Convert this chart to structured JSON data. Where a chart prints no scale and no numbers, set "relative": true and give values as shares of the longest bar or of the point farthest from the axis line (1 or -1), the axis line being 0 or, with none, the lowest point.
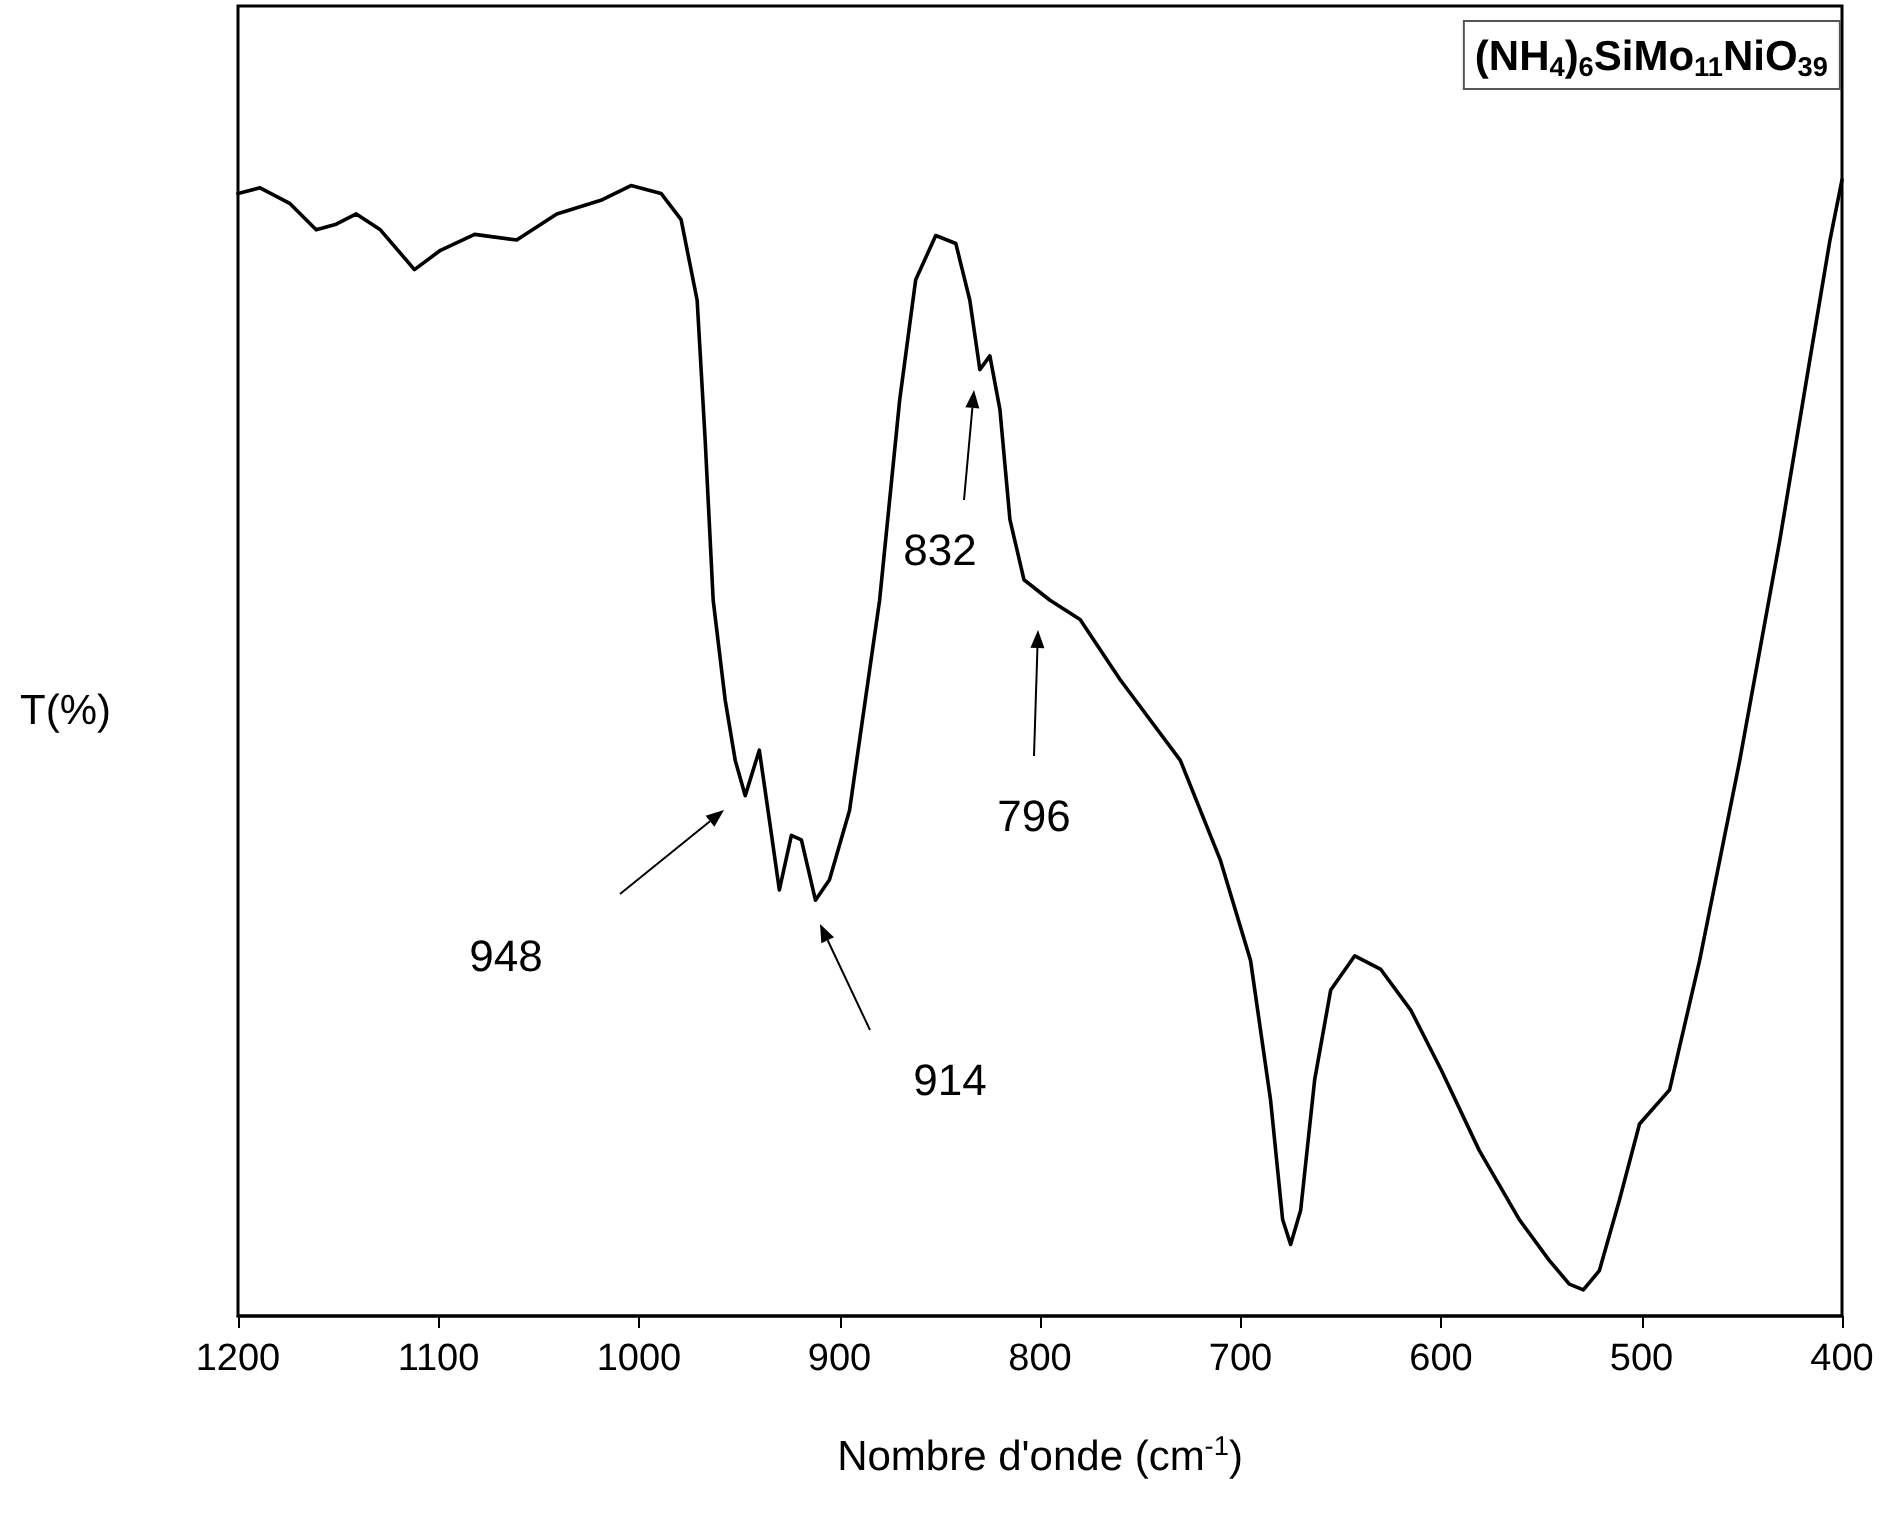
{
  "chart_data": {
    "type": "line",
    "relative": true,
    "title": "(NH$_{4}$)$_{6}$SiMo$_{11}$NiO$_{39}$",
    "xlabel": "Nombre d'onde (cm$^{-1}$)",
    "ylabel": "T(%)",
    "xlim": [
      1200,
      400
    ],
    "xticks": [
      1200,
      1100,
      1000,
      900,
      800,
      700,
      600,
      500,
      400
    ],
    "marker": "none",
    "line_style": "solid",
    "series": [
      {
        "color": "#000000",
        "x": [
          1200,
          1189,
          1174,
          1161,
          1151,
          1141,
          1129,
          1112,
          1099,
          1082,
          1061,
          1041,
          1019,
          1004,
          989,
          979,
          971,
          967,
          963,
          957,
          952,
          947,
          940,
          935,
          930,
          924,
          919,
          912,
          905,
          895,
          880,
          870,
          862,
          852,
          842,
          835,
          830,
          825,
          820,
          815,
          808,
          795,
          780,
          760,
          730,
          710,
          695,
          685,
          679,
          675,
          670,
          663,
          655,
          643,
          630,
          615,
          600,
          581,
          561,
          546,
          536,
          529,
          521,
          511,
          501,
          486,
          471,
          451,
          431,
          416,
          406,
          400
        ],
        "values": [
          0.988,
          0.993,
          0.979,
          0.956,
          0.961,
          0.97,
          0.956,
          0.921,
          0.938,
          0.952,
          0.947,
          0.97,
          0.982,
          0.995,
          0.988,
          0.965,
          0.894,
          0.771,
          0.63,
          0.542,
          0.489,
          0.458,
          0.498,
          0.437,
          0.375,
          0.423,
          0.419,
          0.366,
          0.384,
          0.445,
          0.63,
          0.806,
          0.912,
          0.951,
          0.944,
          0.894,
          0.833,
          0.845,
          0.798,
          0.701,
          0.648,
          0.63,
          0.613,
          0.56,
          0.489,
          0.401,
          0.313,
          0.19,
          0.085,
          0.063,
          0.093,
          0.208,
          0.287,
          0.317,
          0.305,
          0.269,
          0.217,
          0.146,
          0.085,
          0.049,
          0.028,
          0.023,
          0.04,
          0.102,
          0.169,
          0.199,
          0.313,
          0.489,
          0.683,
          0.842,
          0.947,
          1
        ]
      }
    ],
    "annotations": [
      "948",
      "914",
      "832",
      "796"
    ]
  }
}
